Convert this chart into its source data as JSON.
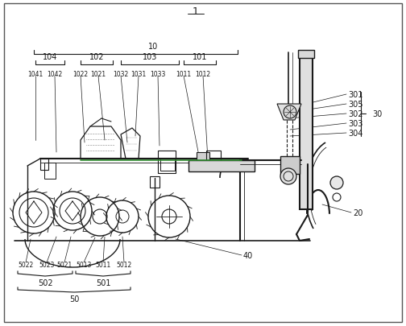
{
  "bg_color": "#ffffff",
  "line_color": "#1a1a1a",
  "label_fontsize": 7,
  "small_fontsize": 5.5,
  "fig_w": 5.04,
  "fig_h": 4.06,
  "dpi": 100
}
